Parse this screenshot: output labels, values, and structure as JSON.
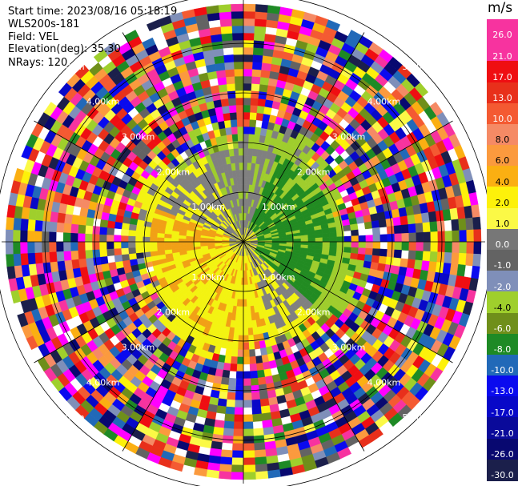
{
  "header": {
    "start_time": "Start time: 2023/08/16 05:18:19",
    "instrument": "WLS200s-181",
    "field": "Field: VEL",
    "elevation": "Elevation(deg): 35.30",
    "nrays": "NRays: 120"
  },
  "chart_data": {
    "type": "heatmap",
    "projection": "polar-ppi",
    "field": "VEL",
    "elevation_deg": 35.3,
    "n_rays": 120,
    "range_ring_labels_km": [
      "1.00km",
      "2.00km",
      "3.00km",
      "4.00km",
      "5.00km"
    ],
    "colorbar": {
      "unit": "m/s",
      "ticks": [
        "26.0",
        "21.0",
        "17.0",
        "13.0",
        "10.0",
        "8.0",
        "6.0",
        "4.0",
        "2.0",
        "1.0",
        "0.0",
        "-1.0",
        "-2.0",
        "-4.0",
        "-6.0",
        "-8.0",
        "-10.0",
        "-13.0",
        "-17.0",
        "-21.0",
        "-26.0",
        "-30.0"
      ],
      "colors": [
        "#f7339f",
        "#f7339f",
        "#ef0e12",
        "#e8301b",
        "#f45a32",
        "#f58a65",
        "#fb9a3e",
        "#fbaf12",
        "#fdf10a",
        "#fbf946",
        "#777777",
        "#636363",
        "#7f8fb9",
        "#9fcf2c",
        "#6f8f1a",
        "#1e8a25",
        "#2169b8",
        "#0a0aef",
        "#0808c8",
        "#0a0a9a",
        "#080870",
        "#1b1f4b"
      ]
    },
    "near_field_pattern": {
      "description_colors": {
        "yellow": "#f3f311",
        "orange": "#f1a016",
        "light_green": "#9fcd2d",
        "dark_green": "#228b22",
        "gray": "#808080"
      }
    }
  }
}
